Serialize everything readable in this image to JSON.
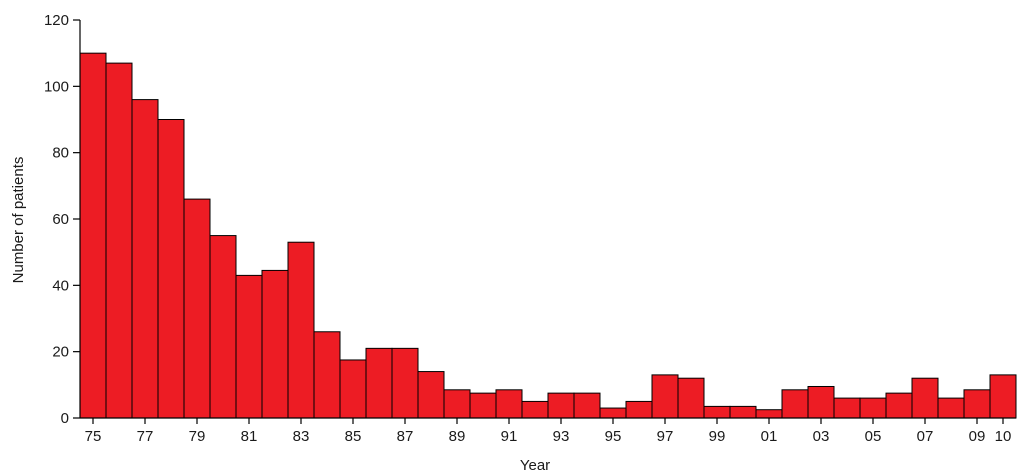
{
  "chart_data": {
    "type": "bar",
    "title": "",
    "xlabel": "Year",
    "ylabel": "Number of patients",
    "ylim": [
      0,
      120
    ],
    "yticks": [
      0,
      20,
      40,
      60,
      80,
      100,
      120
    ],
    "grid": false,
    "bar_color": "#ed1c24",
    "categories": [
      "75",
      "76",
      "77",
      "78",
      "79",
      "80",
      "81",
      "82",
      "83",
      "84",
      "85",
      "86",
      "87",
      "88",
      "89",
      "90",
      "91",
      "92",
      "93",
      "94",
      "95",
      "96",
      "97",
      "98",
      "99",
      "00",
      "01",
      "02",
      "03",
      "04",
      "05",
      "06",
      "07",
      "08",
      "09",
      "10"
    ],
    "xtick_labels": [
      "75",
      "",
      "77",
      "",
      "79",
      "",
      "81",
      "",
      "83",
      "",
      "85",
      "",
      "87",
      "",
      "89",
      "",
      "91",
      "",
      "93",
      "",
      "95",
      "",
      "97",
      "",
      "99",
      "",
      "01",
      "",
      "03",
      "",
      "05",
      "",
      "07",
      "",
      "09",
      "10"
    ],
    "values": [
      110,
      107,
      96,
      90,
      66,
      55,
      43,
      44.5,
      53,
      26,
      17.5,
      21,
      21,
      14,
      8.5,
      7.5,
      8.5,
      5,
      7.5,
      7.5,
      3,
      5,
      13,
      12,
      3.5,
      3.5,
      2.5,
      8.5,
      9.5,
      6,
      6,
      7.5,
      12,
      6,
      8.5,
      13
    ]
  }
}
